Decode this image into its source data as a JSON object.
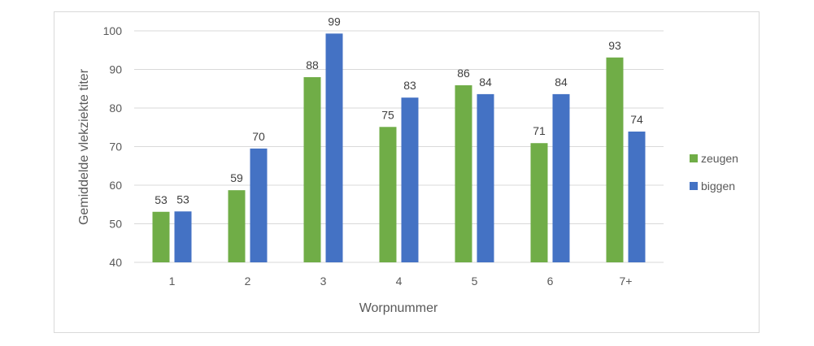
{
  "chart_data": {
    "type": "bar",
    "title": "",
    "xlabel": "Worpnummer",
    "ylabel": "Gemiddelde vlekziekte titer",
    "categories": [
      "1",
      "2",
      "3",
      "4",
      "5",
      "6",
      "7+"
    ],
    "ylim": [
      40,
      100
    ],
    "yticks": [
      40,
      50,
      60,
      70,
      80,
      90,
      100
    ],
    "grid": true,
    "legend_position": "right",
    "series": [
      {
        "name": "zeugen",
        "color": "#70ad47",
        "values": [
          53.1,
          58.7,
          88.0,
          75.1,
          85.9,
          70.9,
          93.1
        ],
        "labels": [
          "53",
          "59",
          "88",
          "75",
          "86",
          "71",
          "93"
        ]
      },
      {
        "name": "biggen",
        "color": "#4472c4",
        "values": [
          53.2,
          69.5,
          99.3,
          82.7,
          83.6,
          83.6,
          73.9
        ],
        "labels": [
          "53",
          "70",
          "99",
          "83",
          "84",
          "84",
          "74"
        ]
      }
    ]
  }
}
